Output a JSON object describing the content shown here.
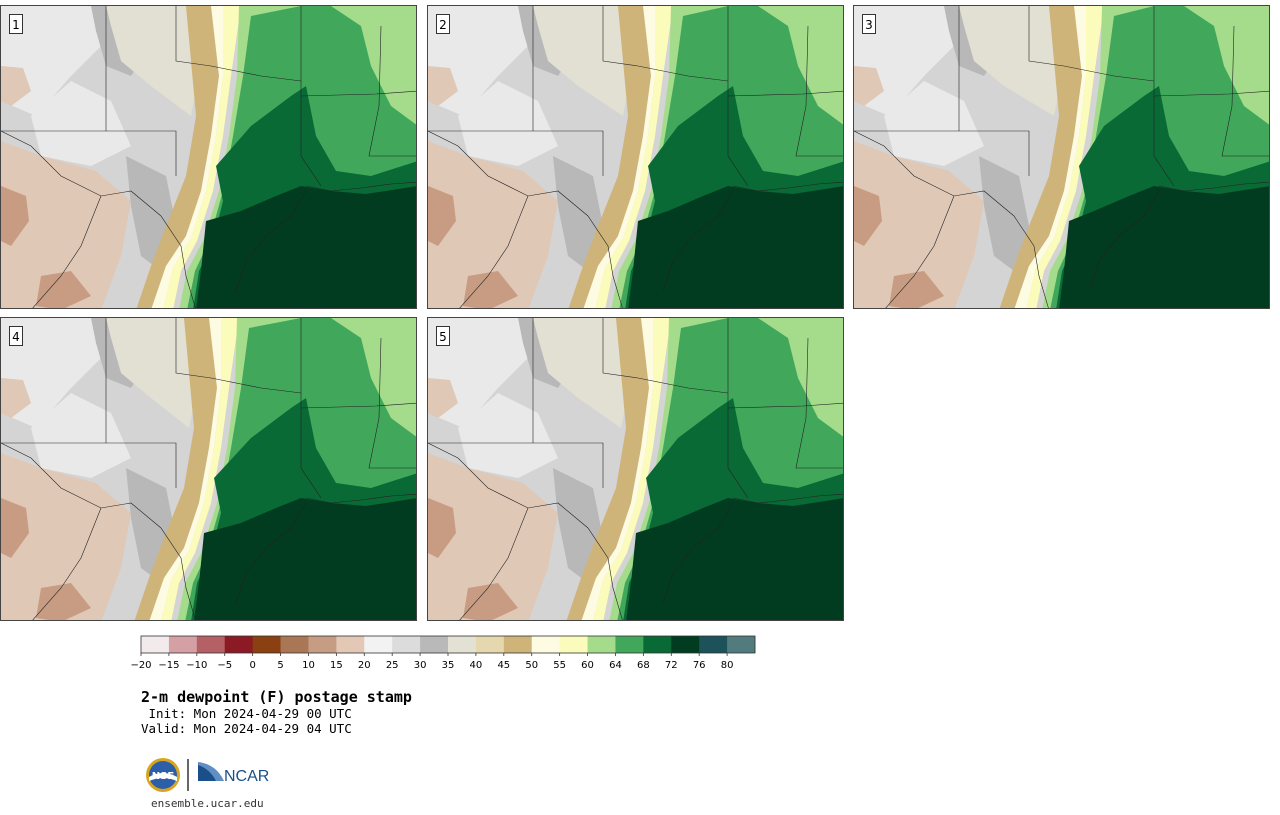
{
  "panels": [
    {
      "label": "1"
    },
    {
      "label": "2"
    },
    {
      "label": "3"
    },
    {
      "label": "4"
    },
    {
      "label": "5"
    }
  ],
  "colorbar": {
    "ticks": [
      "−20",
      "−15",
      "−10",
      "−5",
      "0",
      "5",
      "10",
      "15",
      "20",
      "25",
      "30",
      "35",
      "40",
      "45",
      "50",
      "55",
      "60",
      "64",
      "68",
      "72",
      "76",
      "80"
    ],
    "colors": [
      "#f3ebeb",
      "#d4a0a4",
      "#b56065",
      "#8c1a25",
      "#8a4010",
      "#a97755",
      "#c69c82",
      "#e3c8b6",
      "#f2f2f2",
      "#dcdcdc",
      "#b9b9b9",
      "#e3e1d3",
      "#e6d8ae",
      "#cfb47a",
      "#fdfbe1",
      "#fbfcbb",
      "#a5dc8c",
      "#41a85b",
      "#096a36",
      "#013c21",
      "#1d525a",
      "#527b7e"
    ]
  },
  "title": {
    "main": "2-m dewpoint (F) postage stamp",
    "init": " Init: Mon 2024-04-29 00 UTC",
    "valid": "Valid: Mon 2024-04-29 04 UTC"
  },
  "logos": {
    "nsf": "NSF",
    "ncar": "NCAR"
  },
  "website": "ensemble.ucar.edu"
}
